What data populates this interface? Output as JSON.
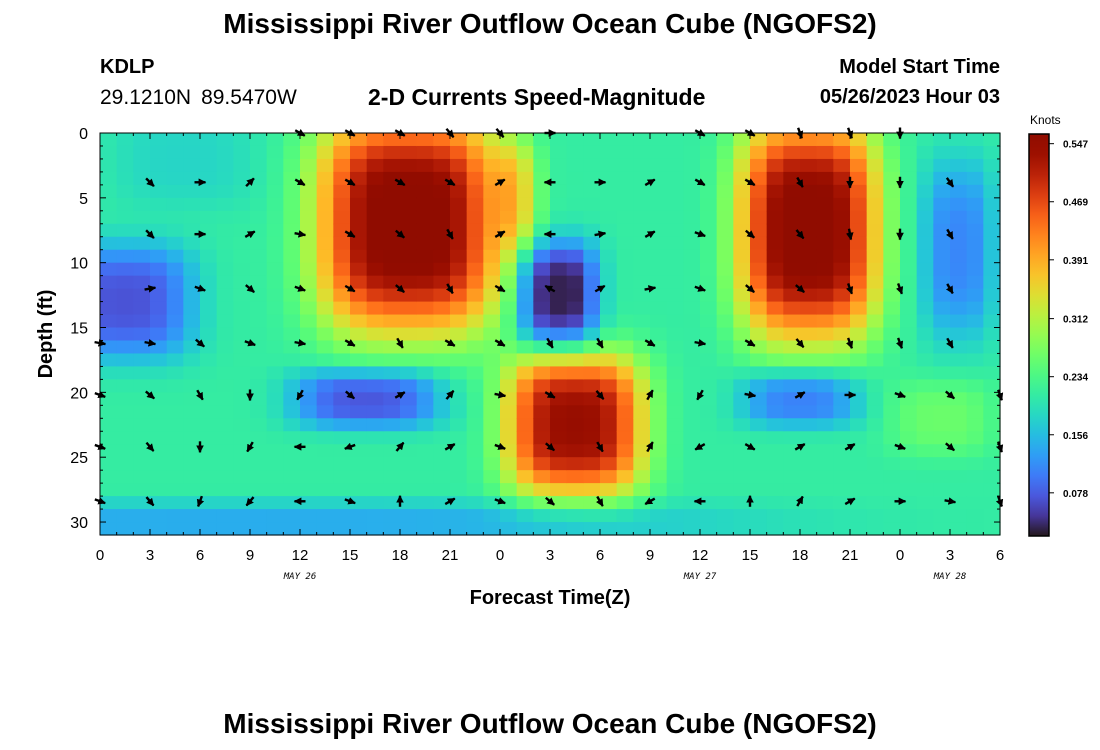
{
  "header": {
    "title": "Mississippi River Outflow Ocean Cube (NGOFS2)",
    "station_id": "KDLP",
    "latitude": "29.1210N",
    "longitude": "89.5470W",
    "model_start_label": "Model Start Time",
    "model_start_value": "05/26/2023 Hour 03"
  },
  "footer": {
    "title_repeat": "Mississippi River Outflow Ocean Cube (NGOFS2)"
  },
  "chart_data": {
    "type": "heatmap",
    "title": "2-D Currents Speed-Magnitude",
    "xlabel": "Forecast Time(Z)",
    "ylabel": "Depth (ft)",
    "xlim": [
      0,
      54
    ],
    "ylim": [
      31,
      0
    ],
    "x_ticks": [
      0,
      3,
      6,
      9,
      12,
      15,
      18,
      21,
      24,
      27,
      30,
      33,
      36,
      39,
      42,
      45,
      48,
      51,
      54
    ],
    "x_tick_labels": [
      "0",
      "3",
      "6",
      "9",
      "12",
      "15",
      "18",
      "21",
      "0",
      "3",
      "6",
      "9",
      "12",
      "15",
      "18",
      "21",
      "0",
      "3",
      "6"
    ],
    "y_ticks": [
      0,
      5,
      10,
      15,
      20,
      25,
      30
    ],
    "y_tick_labels": [
      "0",
      "5",
      "10",
      "15",
      "20",
      "25",
      "30"
    ],
    "date_labels": [
      {
        "text": "MAY 26",
        "x": 12
      },
      {
        "text": "MAY 27",
        "x": 36
      },
      {
        "text": "MAY 28",
        "x": 51
      }
    ],
    "colorbar": {
      "label": "Knots",
      "min": 0.02,
      "max": 0.56,
      "ticks": [
        0.078,
        0.156,
        0.234,
        0.312,
        0.391,
        0.469,
        0.547
      ],
      "tick_labels": [
        "0.078",
        "0.156",
        "0.234",
        "0.312",
        "0.391",
        "0.469",
        "0.547"
      ],
      "colormap": "turbo"
    },
    "arrow_times": [
      0,
      3,
      6,
      9,
      12,
      15,
      18,
      21,
      24,
      27,
      30,
      33,
      36,
      39,
      42,
      45,
      48,
      51,
      54
    ],
    "arrow_depths": [
      0,
      3.8,
      7.8,
      12,
      16.2,
      20.2,
      24.2,
      28.4
    ],
    "arrow_directions_deg": [
      [
        null,
        null,
        null,
        null,
        120,
        120,
        120,
        140,
        140,
        90,
        null,
        null,
        120,
        120,
        160,
        160,
        180,
        null,
        null
      ],
      [
        null,
        135,
        90,
        45,
        120,
        120,
        120,
        120,
        60,
        270,
        90,
        60,
        120,
        120,
        150,
        180,
        180,
        145,
        null
      ],
      [
        null,
        135,
        90,
        60,
        100,
        120,
        130,
        150,
        60,
        270,
        80,
        60,
        110,
        130,
        140,
        170,
        180,
        150,
        null
      ],
      [
        null,
        80,
        110,
        130,
        110,
        120,
        130,
        150,
        120,
        300,
        60,
        80,
        110,
        130,
        130,
        160,
        160,
        150,
        null
      ],
      [
        100,
        100,
        130,
        110,
        100,
        120,
        150,
        120,
        120,
        150,
        150,
        120,
        100,
        120,
        140,
        160,
        160,
        150,
        null
      ],
      [
        110,
        130,
        150,
        180,
        210,
        130,
        60,
        40,
        100,
        120,
        140,
        30,
        210,
        100,
        60,
        90,
        110,
        130,
        160
      ],
      [
        110,
        140,
        180,
        210,
        270,
        250,
        40,
        60,
        110,
        130,
        150,
        30,
        240,
        120,
        60,
        60,
        110,
        130,
        160
      ],
      [
        110,
        140,
        200,
        220,
        270,
        110,
        0,
        60,
        110,
        130,
        150,
        240,
        270,
        0,
        30,
        60,
        90,
        100,
        160
      ]
    ]
  }
}
